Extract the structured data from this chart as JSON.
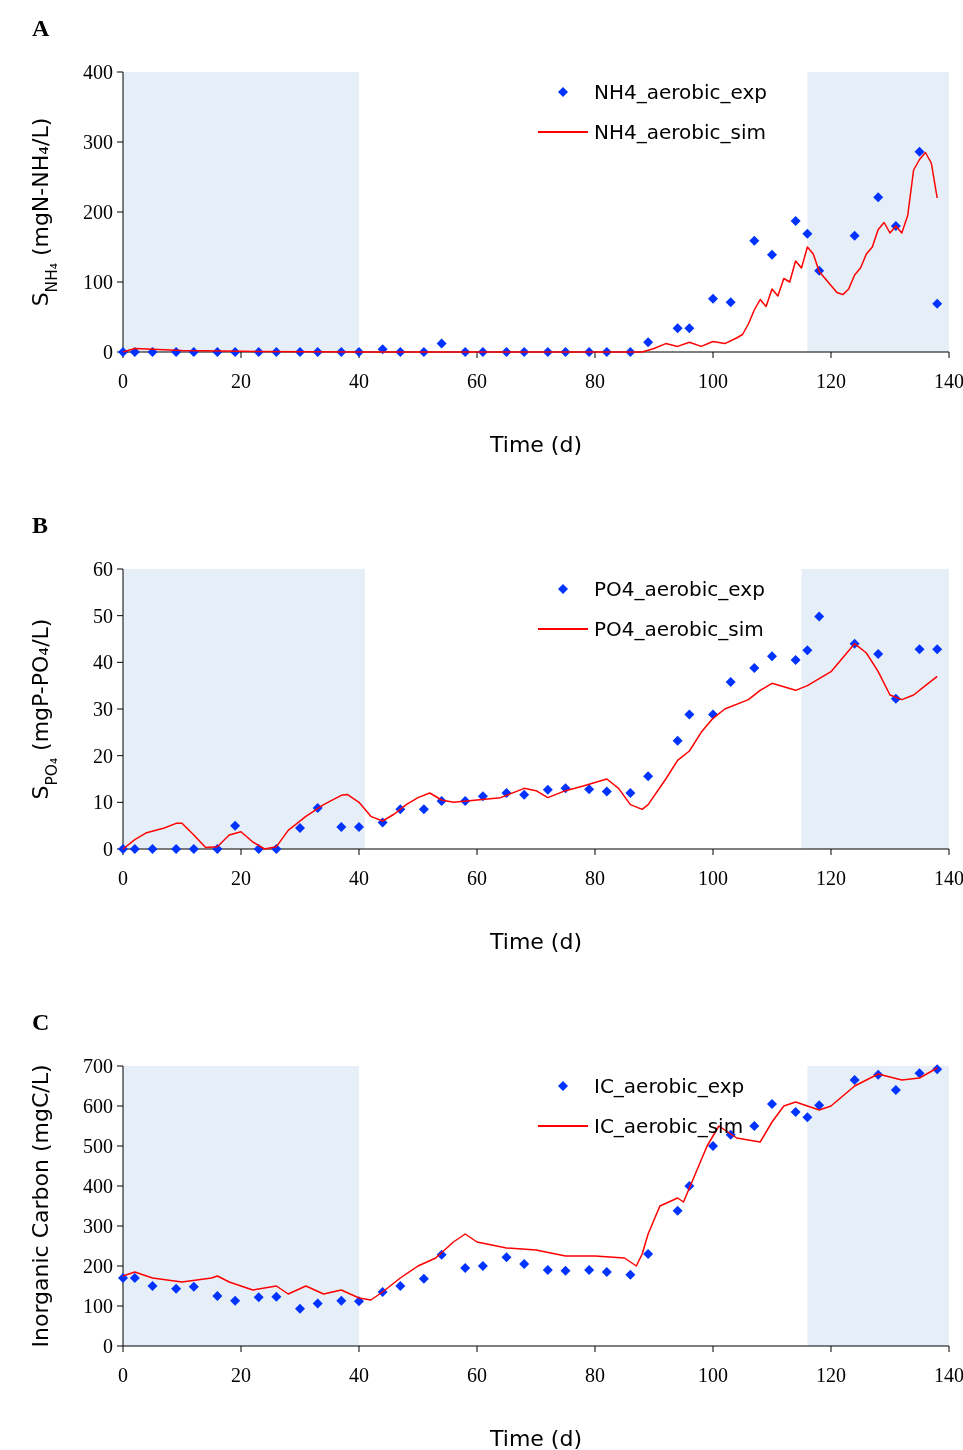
{
  "chart_data": [
    {
      "type": "scatter",
      "title": "A",
      "xlabel": "Time (d)",
      "ylabel": "S$_{NH₄}$  (mgN-NH₄/L)",
      "xlim": [
        0,
        140
      ],
      "xticks": [
        0,
        20,
        40,
        60,
        80,
        100,
        120,
        140
      ],
      "ylim": [
        0,
        400
      ],
      "yticks": [
        0,
        100,
        200,
        300,
        400
      ],
      "legend": "top right",
      "grid": false,
      "bands": [
        {
          "axis": "x",
          "from": 0,
          "to": 40,
          "color": "#e6eff8"
        },
        {
          "axis": "x",
          "from": 116,
          "to": 140,
          "color": "#e6eff8"
        }
      ],
      "series": [
        {
          "name": "NH4_aerobic_exp",
          "marker": "diamond",
          "color": "#0033ff",
          "x": [
            0,
            2,
            5,
            9,
            12,
            16,
            19,
            23,
            26,
            30,
            33,
            37,
            40,
            44,
            47,
            51,
            54,
            58,
            61,
            65,
            68,
            72,
            75,
            79,
            82,
            86,
            89,
            94,
            96,
            100,
            103,
            107,
            110,
            114,
            116,
            118,
            124,
            128,
            131,
            135,
            138
          ],
          "values": [
            0,
            0,
            0,
            0,
            0,
            0,
            0,
            0,
            0,
            0,
            0,
            0,
            0,
            4,
            0,
            0,
            12,
            0,
            0,
            0,
            0,
            0,
            0,
            0,
            0,
            0,
            14,
            34,
            34,
            76,
            71,
            159,
            139,
            187,
            169,
            116,
            166,
            221,
            180,
            286,
            69
          ]
        },
        {
          "name": "NH4_aerobic_sim",
          "type": "line",
          "color": "#ff0000",
          "x": [
            0,
            2,
            5,
            10,
            20,
            40,
            60,
            80,
            88,
            90,
            92,
            94,
            96,
            98,
            100,
            102,
            104,
            105,
            106,
            107,
            108,
            109,
            110,
            111,
            112,
            113,
            114,
            115,
            116,
            117,
            118,
            119,
            120,
            121,
            122,
            123,
            124,
            125,
            126,
            127,
            128,
            129,
            130,
            131,
            132,
            133,
            134,
            135,
            136,
            137,
            138
          ],
          "values": [
            0,
            5,
            4,
            2,
            1,
            0,
            0,
            0,
            0,
            5,
            12,
            8,
            14,
            8,
            15,
            12,
            20,
            25,
            40,
            60,
            75,
            65,
            90,
            80,
            105,
            100,
            130,
            120,
            150,
            140,
            115,
            105,
            95,
            85,
            82,
            90,
            110,
            120,
            140,
            150,
            175,
            185,
            170,
            180,
            170,
            195,
            260,
            275,
            285,
            270,
            220
          ]
        }
      ]
    },
    {
      "type": "scatter",
      "title": "B",
      "xlabel": "Time (d)",
      "ylabel": "S$_{PO₄}$  (mgP-PO₄/L)",
      "xlim": [
        0,
        140
      ],
      "xticks": [
        0,
        20,
        40,
        60,
        80,
        100,
        120,
        140
      ],
      "ylim": [
        0,
        60
      ],
      "yticks": [
        0,
        10,
        20,
        30,
        40,
        50,
        60
      ],
      "legend": "top right",
      "grid": false,
      "bands": [
        {
          "axis": "x",
          "from": 0,
          "to": 41,
          "color": "#e6eff8"
        },
        {
          "axis": "x",
          "from": 115,
          "to": 140,
          "color": "#e6eff8"
        }
      ],
      "series": [
        {
          "name": "PO4_aerobic_exp",
          "marker": "diamond",
          "color": "#0033ff",
          "x": [
            0,
            2,
            5,
            9,
            12,
            16,
            19,
            23,
            26,
            30,
            33,
            37,
            40,
            44,
            47,
            51,
            54,
            58,
            61,
            65,
            68,
            72,
            75,
            79,
            82,
            86,
            89,
            94,
            96,
            100,
            103,
            107,
            110,
            114,
            116,
            118,
            124,
            128,
            131,
            135,
            138
          ],
          "values": [
            0,
            0,
            0,
            0,
            0,
            0,
            5,
            0,
            0,
            4.5,
            8.8,
            4.7,
            4.7,
            5.7,
            8.5,
            8.5,
            10.3,
            10.3,
            11.3,
            12,
            11.6,
            12.7,
            13,
            12.8,
            12.3,
            12,
            15.6,
            23.2,
            28.8,
            28.8,
            35.8,
            38.8,
            41.3,
            40.5,
            42.6,
            49.8,
            44,
            41.8,
            32.2,
            42.8,
            42.8
          ]
        },
        {
          "name": "PO4_aerobic_sim",
          "type": "line",
          "color": "#ff0000",
          "x": [
            0,
            2,
            4,
            7,
            9,
            10,
            12,
            14,
            16,
            18,
            20,
            22,
            24,
            26,
            28,
            31,
            34,
            37,
            38,
            40,
            42,
            44,
            46,
            48,
            50,
            52,
            54,
            56,
            60,
            64,
            68,
            70,
            72,
            75,
            78,
            82,
            84,
            86,
            88,
            89,
            92,
            94,
            96,
            98,
            100,
            102,
            106,
            108,
            110,
            114,
            116,
            120,
            124,
            126,
            128,
            130,
            132,
            134,
            136,
            138
          ],
          "values": [
            0,
            2,
            3.5,
            4.5,
            5.5,
            5.5,
            3,
            0.3,
            0.5,
            3,
            3.7,
            1.5,
            0,
            0.5,
            4,
            7,
            9.5,
            11.5,
            11.7,
            10,
            7,
            6,
            7.5,
            9.5,
            11,
            12,
            10.5,
            10,
            10.5,
            11,
            13,
            12.5,
            11,
            12.5,
            13.5,
            15,
            13,
            9.5,
            8.5,
            9.5,
            15,
            19,
            21,
            25,
            28,
            30,
            32,
            34,
            35.5,
            34,
            35,
            38,
            44,
            42,
            38,
            33,
            32,
            33,
            35,
            37
          ]
        }
      ]
    },
    {
      "type": "scatter",
      "title": "C",
      "xlabel": "Time (d)",
      "ylabel": "Inorganic Carbon (mgC/L)",
      "xlim": [
        0,
        140
      ],
      "xticks": [
        0,
        20,
        40,
        60,
        80,
        100,
        120,
        140
      ],
      "ylim": [
        0,
        700
      ],
      "yticks": [
        0,
        100,
        200,
        300,
        400,
        500,
        600,
        700
      ],
      "legend": "top right",
      "grid": false,
      "bands": [
        {
          "axis": "x",
          "from": 0,
          "to": 40,
          "color": "#e6eff8"
        },
        {
          "axis": "x",
          "from": 116,
          "to": 140,
          "color": "#e6eff8"
        }
      ],
      "series": [
        {
          "name": "IC_aerobic_exp",
          "marker": "diamond",
          "color": "#0033ff",
          "x": [
            0,
            2,
            5,
            9,
            12,
            16,
            19,
            23,
            26,
            30,
            33,
            37,
            40,
            44,
            47,
            51,
            54,
            58,
            61,
            65,
            68,
            72,
            75,
            79,
            82,
            86,
            89,
            94,
            96,
            100,
            103,
            107,
            110,
            114,
            116,
            118,
            124,
            128,
            131,
            135,
            138
          ],
          "values": [
            170,
            170,
            150,
            143,
            148,
            125,
            113,
            122,
            123,
            93,
            106,
            113,
            112,
            135,
            150,
            168,
            228,
            195,
            200,
            222,
            205,
            190,
            188,
            190,
            185,
            178,
            230,
            338,
            400,
            500,
            528,
            550,
            605,
            585,
            572,
            602,
            665,
            678,
            640,
            682,
            692
          ]
        },
        {
          "name": "IC_aerobic_sim",
          "type": "line",
          "color": "#ff0000",
          "x": [
            0,
            2,
            5,
            10,
            15,
            16,
            18,
            22,
            26,
            28,
            31,
            34,
            37,
            40,
            42,
            44,
            47,
            50,
            53,
            56,
            58,
            60,
            65,
            70,
            75,
            80,
            85,
            87,
            88,
            89,
            91,
            94,
            95,
            97,
            99,
            101,
            102,
            104,
            108,
            110,
            112,
            114,
            116,
            118,
            120,
            124,
            128,
            132,
            135,
            138
          ],
          "values": [
            175,
            185,
            170,
            160,
            170,
            175,
            160,
            140,
            150,
            130,
            150,
            130,
            140,
            120,
            115,
            135,
            170,
            200,
            220,
            260,
            280,
            260,
            245,
            240,
            225,
            225,
            220,
            200,
            230,
            280,
            350,
            370,
            360,
            430,
            500,
            550,
            540,
            520,
            510,
            560,
            600,
            610,
            600,
            590,
            600,
            650,
            680,
            665,
            670,
            695
          ]
        }
      ]
    }
  ]
}
